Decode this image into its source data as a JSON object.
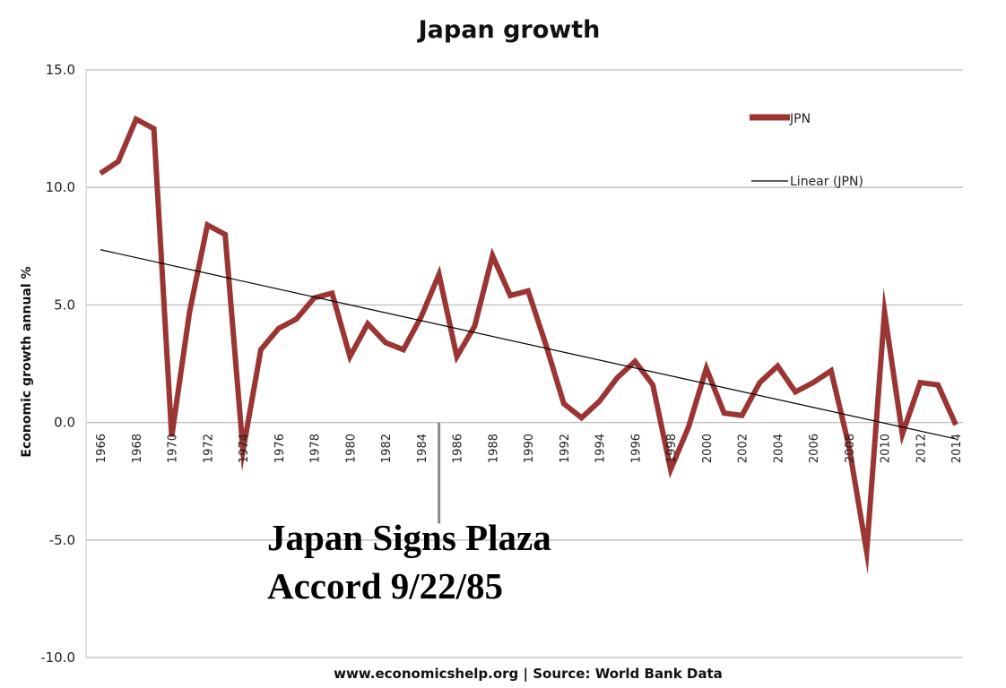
{
  "chart_data": {
    "type": "line",
    "title": "Japan growth",
    "ylabel": "Economic growth annual %",
    "xlabel": "",
    "source": "www.economicshelp.org | Source: World Bank Data",
    "ylim": [
      -10,
      15
    ],
    "y_ticks": [
      "15.0",
      "10.0",
      "5.0",
      "0.0",
      "-5.0",
      "-10.0"
    ],
    "y_tick_values": [
      15,
      10,
      5,
      0,
      -5,
      -10
    ],
    "x_tick_labels": [
      "1966",
      "1968",
      "1970",
      "1972",
      "1974",
      "1976",
      "1978",
      "1980",
      "1982",
      "1984",
      "1986",
      "1988",
      "1990",
      "1992",
      "1994",
      "1996",
      "1998",
      "2000",
      "2002",
      "2004",
      "2006",
      "2008",
      "2010",
      "2012",
      "2014"
    ],
    "grid": true,
    "legend_position": "top-right",
    "series": [
      {
        "name": "JPN",
        "color": "#9b3533",
        "x": [
          1966,
          1967,
          1968,
          1969,
          1970,
          1971,
          1972,
          1973,
          1974,
          1975,
          1976,
          1977,
          1978,
          1979,
          1980,
          1981,
          1982,
          1983,
          1984,
          1985,
          1986,
          1987,
          1988,
          1989,
          1990,
          1991,
          1992,
          1993,
          1994,
          1995,
          1996,
          1997,
          1998,
          1999,
          2000,
          2001,
          2002,
          2003,
          2004,
          2005,
          2006,
          2007,
          2008,
          2009,
          2010,
          2011,
          2012,
          2013,
          2014
        ],
        "values": [
          10.6,
          11.1,
          12.9,
          12.5,
          -0.6,
          4.7,
          8.4,
          8.0,
          -1.2,
          3.1,
          4.0,
          4.4,
          5.3,
          5.5,
          2.8,
          4.2,
          3.4,
          3.1,
          4.5,
          6.3,
          2.8,
          4.1,
          7.1,
          5.4,
          5.6,
          3.3,
          0.8,
          0.2,
          0.9,
          1.9,
          2.6,
          1.6,
          -2.0,
          -0.2,
          2.3,
          0.4,
          0.3,
          1.7,
          2.4,
          1.3,
          1.7,
          2.2,
          -1.0,
          -5.5,
          4.7,
          -0.5,
          1.7,
          1.6,
          -0.1
        ]
      },
      {
        "name": "Linear (JPN)",
        "color": "#000000",
        "type": "trendline",
        "x": [
          1966,
          2014
        ],
        "values": [
          7.35,
          -0.7
        ]
      }
    ],
    "annotation": {
      "lines": [
        "Japan Signs Plaza",
        "Accord 9/22/85"
      ],
      "marker_x": 1985,
      "marker_y_range": [
        0,
        -4.3
      ]
    }
  }
}
